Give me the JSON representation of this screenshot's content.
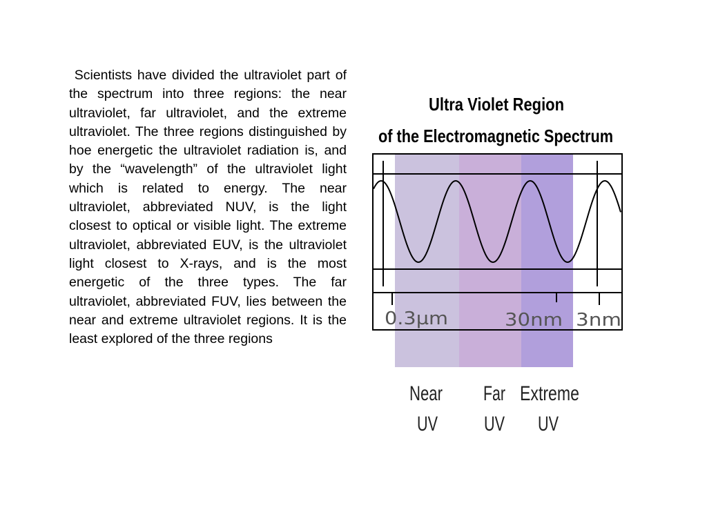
{
  "body": {
    "paragraph": " Scientists have divided the ultraviolet part of the spectrum into three regions: the near ultraviolet, far ultraviolet, and the extreme ultraviolet. The three regions distinguished by hoe energetic the ultraviolet radiation is, and by the “wavelength” of the ultraviolet light which is related to energy. The near ultraviolet, abbreviated NUV, is the light closest to optical or visible light. The extreme ultraviolet, abbreviated EUV, is the ultraviolet light closest to X-rays, and is the most energetic of the three types. The far ultraviolet, abbreviated FUV, lies between the near and extreme ultraviolet regions. It is the least explored of the three regions"
  },
  "figure": {
    "title": [
      "Ultra Violet Region",
      "of the Electromagnetic Spectrum"
    ],
    "scale_labels": [
      "0.3µm",
      "30nm",
      "3nm"
    ],
    "regions": [
      {
        "lines": [
          "Near",
          "UV"
        ]
      },
      {
        "lines": [
          "Far",
          "UV"
        ]
      },
      {
        "lines": [
          "Extreme",
          "UV"
        ]
      }
    ]
  }
}
